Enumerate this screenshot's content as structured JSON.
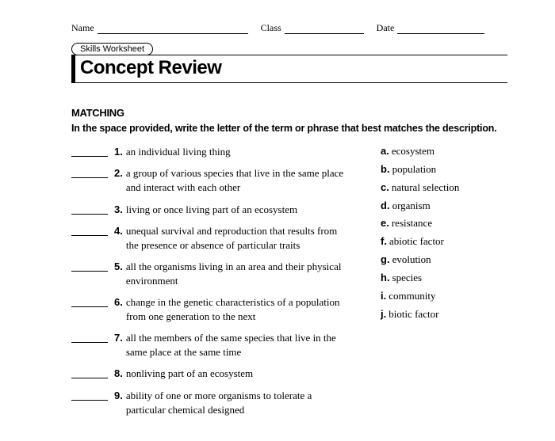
{
  "header": {
    "name_label": "Name",
    "class_label": "Class",
    "date_label": "Date"
  },
  "worksheet_tab": "Skills Worksheet",
  "title": "Concept Review",
  "section_heading": "MATCHING",
  "instruction": "In the space provided, write the letter of the term or phrase that best matches the description.",
  "questions": [
    {
      "num": "1.",
      "text": "an individual living thing"
    },
    {
      "num": "2.",
      "text": "a group of various species that live in the same place and interact with each other"
    },
    {
      "num": "3.",
      "text": "living or once living part of an ecosystem"
    },
    {
      "num": "4.",
      "text": "unequal survival and reproduction that results from the presence or absence of particular traits"
    },
    {
      "num": "5.",
      "text": "all the organisms living in an area and their physical environment"
    },
    {
      "num": "6.",
      "text": "change in the genetic characteristics of a population from one generation to the next"
    },
    {
      "num": "7.",
      "text": "all the members of the same species that live in the same place at the same time"
    },
    {
      "num": "8.",
      "text": "nonliving part of an ecosystem"
    },
    {
      "num": "9.",
      "text": "ability of one or more organisms to tolerate a particular chemical designed"
    }
  ],
  "answers": [
    {
      "letter": "a.",
      "text": "ecosystem"
    },
    {
      "letter": "b.",
      "text": "population"
    },
    {
      "letter": "c.",
      "text": "natural selection"
    },
    {
      "letter": "d.",
      "text": "organism"
    },
    {
      "letter": "e.",
      "text": "resistance"
    },
    {
      "letter": "f.",
      "text": "abiotic factor"
    },
    {
      "letter": "g.",
      "text": "evolution"
    },
    {
      "letter": "h.",
      "text": "species"
    },
    {
      "letter": "i.",
      "text": "community"
    },
    {
      "letter": "j.",
      "text": "biotic factor"
    }
  ]
}
